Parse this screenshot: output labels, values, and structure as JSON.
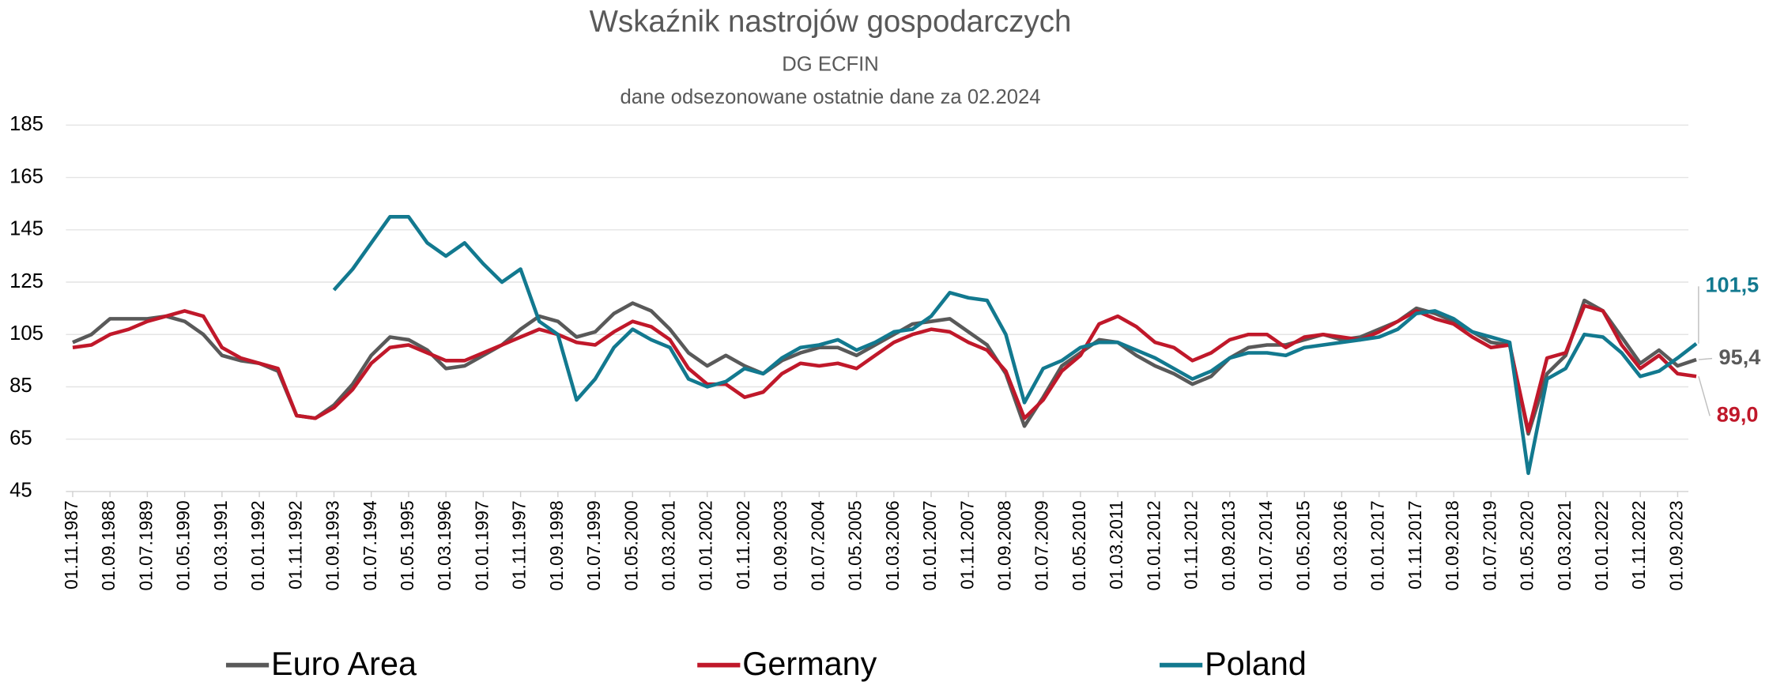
{
  "chart_data": {
    "type": "line",
    "title": "Wskaźnik nastrojów gospodarczych",
    "subtitle": "DG ECFIN",
    "note": "dane odsezonowane ostatnie dane za 02.2024",
    "x": [
      "01.11.1987",
      "01.04.1988",
      "01.09.1988",
      "01.02.1989",
      "01.07.1989",
      "01.12.1989",
      "01.05.1990",
      "01.10.1990",
      "01.03.1991",
      "01.08.1991",
      "01.01.1992",
      "01.06.1992",
      "01.11.1992",
      "01.04.1993",
      "01.09.1993",
      "01.02.1994",
      "01.07.1994",
      "01.12.1994",
      "01.05.1995",
      "01.10.1995",
      "01.03.1996",
      "01.08.1996",
      "01.01.1997",
      "01.06.1997",
      "01.11.1997",
      "01.04.1998",
      "01.09.1998",
      "01.02.1999",
      "01.07.1999",
      "01.12.1999",
      "01.05.2000",
      "01.10.2000",
      "01.03.2001",
      "01.08.2001",
      "01.01.2002",
      "01.06.2002",
      "01.11.2002",
      "01.04.2003",
      "01.09.2003",
      "01.02.2004",
      "01.07.2004",
      "01.12.2004",
      "01.05.2005",
      "01.10.2005",
      "01.03.2006",
      "01.08.2006",
      "01.01.2007",
      "01.06.2007",
      "01.11.2007",
      "01.04.2008",
      "01.09.2008",
      "01.02.2009",
      "01.07.2009",
      "01.12.2009",
      "01.05.2010",
      "01.10.2010",
      "01.03.2011",
      "01.08.2011",
      "01.01.2012",
      "01.06.2012",
      "01.11.2012",
      "01.04.2013",
      "01.09.2013",
      "01.02.2014",
      "01.07.2014",
      "01.12.2014",
      "01.05.2015",
      "01.10.2015",
      "01.03.2016",
      "01.08.2016",
      "01.01.2017",
      "01.06.2017",
      "01.11.2017",
      "01.04.2018",
      "01.09.2018",
      "01.02.2019",
      "01.07.2019",
      "01.12.2019",
      "01.05.2020",
      "01.10.2020",
      "01.03.2021",
      "01.08.2021",
      "01.01.2022",
      "01.06.2022",
      "01.11.2022",
      "01.04.2023",
      "01.09.2023",
      "01.02.2024"
    ],
    "xticks": [
      "01.11.1987",
      "01.09.1988",
      "01.07.1989",
      "01.05.1990",
      "01.03.1991",
      "01.01.1992",
      "01.11.1992",
      "01.09.1993",
      "01.07.1994",
      "01.05.1995",
      "01.03.1996",
      "01.01.1997",
      "01.11.1997",
      "01.09.1998",
      "01.07.1999",
      "01.05.2000",
      "01.03.2001",
      "01.01.2002",
      "01.11.2002",
      "01.09.2003",
      "01.07.2004",
      "01.05.2005",
      "01.03.2006",
      "01.01.2007",
      "01.11.2007",
      "01.09.2008",
      "01.07.2009",
      "01.05.2010",
      "01.03.2011",
      "01.01.2012",
      "01.11.2012",
      "01.09.2013",
      "01.07.2014",
      "01.05.2015",
      "01.03.2016",
      "01.01.2017",
      "01.11.2017",
      "01.09.2018",
      "01.07.2019",
      "01.05.2020",
      "01.03.2021",
      "01.01.2022",
      "01.11.2022",
      "01.09.2023"
    ],
    "ylim": [
      45,
      185
    ],
    "yticks": [
      45,
      65,
      85,
      105,
      125,
      145,
      165,
      185
    ],
    "grid": true,
    "series": [
      {
        "name": "Euro Area",
        "color": "#595959",
        "values": [
          102,
          105,
          111,
          111,
          111,
          112,
          110,
          105,
          97,
          95,
          94,
          91,
          74,
          73,
          78,
          86,
          97,
          104,
          103,
          99,
          92,
          93,
          97,
          101,
          107,
          112,
          110,
          104,
          106,
          113,
          117,
          114,
          107,
          98,
          93,
          97,
          93,
          90,
          95,
          98,
          100,
          100,
          97,
          101,
          105,
          109,
          110,
          111,
          106,
          101,
          90,
          70,
          81,
          93,
          98,
          103,
          102,
          97,
          93,
          90,
          86,
          89,
          96,
          100,
          101,
          101,
          103,
          105,
          103,
          104,
          107,
          110,
          115,
          113,
          110,
          106,
          102,
          101,
          67,
          90,
          97,
          118,
          114,
          104,
          94,
          99,
          93,
          95.4
        ],
        "value_labels": [
          null,
          null,
          null,
          null,
          null,
          null,
          null,
          null,
          null,
          null,
          null,
          null,
          null,
          null,
          null,
          null,
          null,
          null,
          null,
          null,
          null,
          null,
          null,
          null,
          null,
          null,
          null,
          null,
          null,
          null,
          null,
          null,
          null,
          null,
          null,
          null,
          null,
          null,
          null,
          null,
          null,
          null,
          null,
          null,
          null,
          null,
          null,
          null,
          null,
          null,
          null,
          null,
          null,
          null,
          null,
          null,
          null,
          null,
          null,
          null,
          null,
          null,
          null,
          null,
          null,
          null,
          null,
          null,
          null,
          null,
          null,
          null,
          null,
          null,
          null,
          null,
          null,
          null,
          null,
          null,
          null,
          null,
          null,
          null,
          null,
          null,
          null,
          "95,4"
        ]
      },
      {
        "name": "Germany",
        "color": "#c0182a",
        "values": [
          100,
          101,
          105,
          107,
          110,
          112,
          114,
          112,
          100,
          96,
          94,
          92,
          74,
          73,
          77,
          84,
          94,
          100,
          101,
          98,
          95,
          95,
          98,
          101,
          104,
          107,
          105,
          102,
          101,
          106,
          110,
          108,
          103,
          92,
          86,
          86,
          81,
          83,
          90,
          94,
          93,
          94,
          92,
          97,
          102,
          105,
          107,
          106,
          102,
          99,
          91,
          73,
          80,
          91,
          97,
          109,
          112,
          108,
          102,
          100,
          95,
          98,
          103,
          105,
          105,
          100,
          104,
          105,
          104,
          103,
          106,
          110,
          114,
          111,
          109,
          104,
          100,
          101,
          68,
          96,
          98,
          116,
          114,
          101,
          92,
          97,
          90,
          89.0
        ],
        "value_labels": [
          null,
          null,
          null,
          null,
          null,
          null,
          null,
          null,
          null,
          null,
          null,
          null,
          null,
          null,
          null,
          null,
          null,
          null,
          null,
          null,
          null,
          null,
          null,
          null,
          null,
          null,
          null,
          null,
          null,
          null,
          null,
          null,
          null,
          null,
          null,
          null,
          null,
          null,
          null,
          null,
          null,
          null,
          null,
          null,
          null,
          null,
          null,
          null,
          null,
          null,
          null,
          null,
          null,
          null,
          null,
          null,
          null,
          null,
          null,
          null,
          null,
          null,
          null,
          null,
          null,
          null,
          null,
          null,
          null,
          null,
          null,
          null,
          null,
          null,
          null,
          null,
          null,
          null,
          null,
          null,
          null,
          null,
          null,
          null,
          null,
          null,
          null,
          "89,0"
        ]
      },
      {
        "name": "Poland",
        "color": "#12798f",
        "values": [
          null,
          null,
          null,
          null,
          null,
          null,
          null,
          null,
          null,
          null,
          null,
          null,
          null,
          null,
          122,
          130,
          140,
          150,
          150,
          140,
          135,
          140,
          132,
          125,
          130,
          110,
          105,
          80,
          88,
          100,
          107,
          103,
          100,
          88,
          85,
          87,
          92,
          90,
          96,
          100,
          101,
          103,
          99,
          102,
          106,
          107,
          112,
          121,
          119,
          118,
          105,
          79,
          92,
          95,
          100,
          102,
          102,
          99,
          96,
          92,
          88,
          91,
          96,
          98,
          98,
          97,
          100,
          101,
          102,
          103,
          104,
          107,
          113,
          114,
          111,
          106,
          104,
          102,
          52,
          88,
          92,
          105,
          104,
          98,
          89,
          91,
          96,
          101.5
        ],
        "value_labels": [
          null,
          null,
          null,
          null,
          null,
          null,
          null,
          null,
          null,
          null,
          null,
          null,
          null,
          null,
          null,
          null,
          null,
          null,
          null,
          null,
          null,
          null,
          null,
          null,
          null,
          null,
          null,
          null,
          null,
          null,
          null,
          null,
          null,
          null,
          null,
          null,
          null,
          null,
          null,
          null,
          null,
          null,
          null,
          null,
          null,
          null,
          null,
          null,
          null,
          null,
          null,
          null,
          null,
          null,
          null,
          null,
          null,
          null,
          null,
          null,
          null,
          null,
          null,
          null,
          null,
          null,
          null,
          null,
          null,
          null,
          null,
          null,
          null,
          null,
          null,
          null,
          null,
          null,
          null,
          null,
          null,
          null,
          null,
          null,
          null,
          null,
          null,
          "101,5"
        ]
      }
    ]
  }
}
